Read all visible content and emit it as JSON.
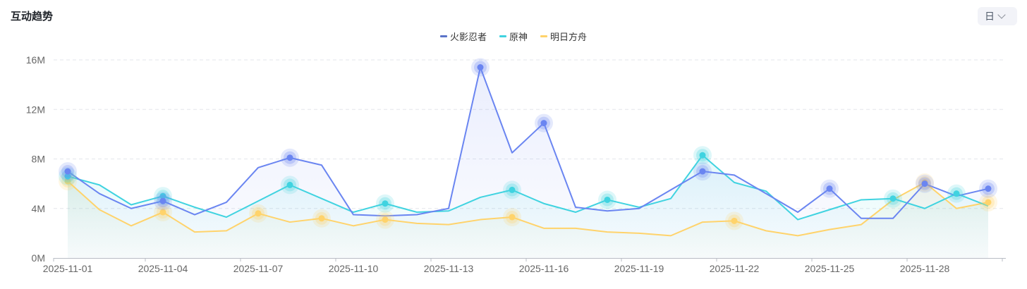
{
  "header": {
    "title": "互动趋势",
    "period_value": "日"
  },
  "legend": {
    "items": [
      "火影忍者",
      "原神",
      "明日方舟"
    ]
  },
  "colors": {
    "naruto": "#6a85f1",
    "genshin": "#40d3e0",
    "arknights": "#ffd36b"
  },
  "icons": {
    "period_dropdown": "chevron-down-icon"
  },
  "chart_data": {
    "type": "line",
    "x": [
      "2025-11-01",
      "2025-11-02",
      "2025-11-03",
      "2025-11-04",
      "2025-11-05",
      "2025-11-06",
      "2025-11-07",
      "2025-11-08",
      "2025-11-09",
      "2025-11-10",
      "2025-11-11",
      "2025-11-12",
      "2025-11-13",
      "2025-11-14",
      "2025-11-15",
      "2025-11-16",
      "2025-11-17",
      "2025-11-18",
      "2025-11-19",
      "2025-11-20",
      "2025-11-21",
      "2025-11-22",
      "2025-11-23",
      "2025-11-24",
      "2025-11-25",
      "2025-11-26",
      "2025-11-27",
      "2025-11-28",
      "2025-11-29",
      "2025-11-30"
    ],
    "x_tick_labels": [
      "2025-11-01",
      "2025-11-04",
      "2025-11-07",
      "2025-11-10",
      "2025-11-13",
      "2025-11-16",
      "2025-11-19",
      "2025-11-22",
      "2025-11-25",
      "2025-11-28"
    ],
    "y_tick_labels": [
      "0M",
      "4M",
      "8M",
      "12M",
      "16M"
    ],
    "ylim": [
      0,
      16
    ],
    "y_unit": "M",
    "grid": true,
    "legend_position": "top-center",
    "series": [
      {
        "name": "火影忍者",
        "color": "#6a85f1",
        "values": [
          7.0,
          5.2,
          4.0,
          4.6,
          3.5,
          4.5,
          7.3,
          8.1,
          7.5,
          3.5,
          3.4,
          3.5,
          4.0,
          15.4,
          8.5,
          10.9,
          4.1,
          3.8,
          4.0,
          5.5,
          7.0,
          6.7,
          5.2,
          3.7,
          5.6,
          3.2,
          3.2,
          6.0,
          5.0,
          5.6
        ],
        "markers": [
          0,
          3,
          7,
          13,
          15,
          20,
          24,
          27,
          29
        ]
      },
      {
        "name": "原神",
        "color": "#40d3e0",
        "values": [
          6.6,
          5.9,
          4.3,
          5.0,
          4.1,
          3.3,
          4.6,
          5.9,
          4.8,
          3.7,
          4.4,
          3.7,
          3.8,
          4.9,
          5.5,
          4.4,
          3.7,
          4.7,
          4.1,
          4.8,
          8.3,
          6.1,
          5.4,
          3.1,
          3.9,
          4.7,
          4.8,
          4.0,
          5.2,
          4.2
        ],
        "markers": [
          0,
          3,
          7,
          10,
          14,
          17,
          20,
          26,
          28
        ]
      },
      {
        "name": "明日方舟",
        "color": "#ffd36b",
        "values": [
          6.2,
          3.9,
          2.6,
          3.7,
          2.1,
          2.2,
          3.6,
          2.9,
          3.2,
          2.6,
          3.1,
          2.8,
          2.7,
          3.1,
          3.3,
          2.4,
          2.4,
          2.1,
          2.0,
          1.8,
          2.9,
          3.0,
          2.2,
          1.8,
          2.3,
          2.7,
          4.7,
          6.1,
          4.0,
          4.5
        ],
        "markers": [
          0,
          3,
          6,
          8,
          10,
          14,
          21,
          27,
          29
        ]
      }
    ]
  }
}
